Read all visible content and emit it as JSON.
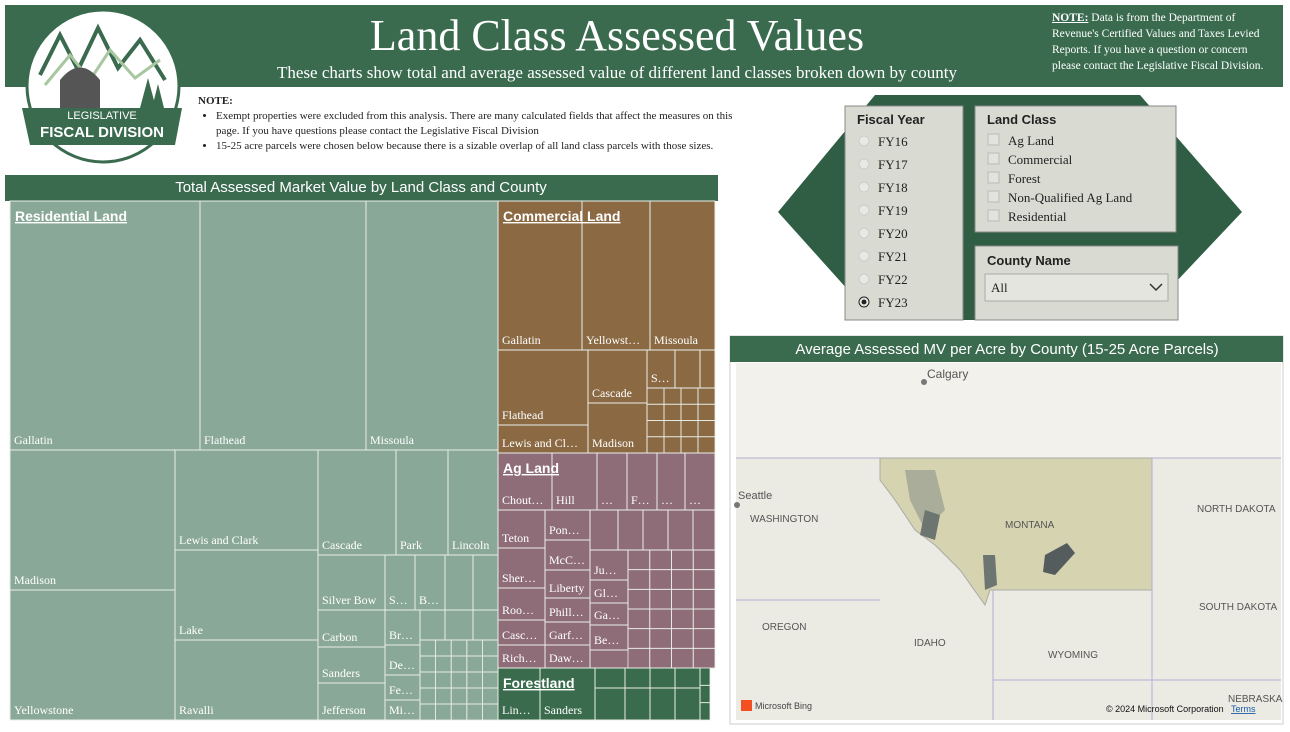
{
  "header": {
    "title": "Land Class Assessed Values",
    "subtitle": "These charts show total and average assessed value of different land classes broken down by county",
    "note_label": "NOTE:",
    "note_text": "Data is from the Department of Revenue's Certified Values and Taxes Levied Reports. If you have a question or concern please contact the Legislative Fiscal Division."
  },
  "logo": {
    "line1": "LEGISLATIVE",
    "line2": "FISCAL DIVISION"
  },
  "notes": {
    "label": "NOTE:",
    "items": [
      "Exempt properties were excluded from this analysis. There are many calculated fields that affect the measures on this page. If you have questions please contact the Legislative Fiscal Division",
      "15-25 acre parcels were chosen below because there is a sizable overlap of all land class parcels with those sizes."
    ]
  },
  "treemap": {
    "title": "Total Assessed Market Value by Land Class and County",
    "groups": [
      {
        "name": "Residential Land",
        "color": "#8aa898",
        "cells": [
          "Gallatin",
          "Flathead",
          "Missoula",
          "Madison",
          "Yellowstone",
          "Lewis and Clark",
          "Lake",
          "Ravalli",
          "Cascade",
          "Park",
          "Lincoln",
          "Silver Bow",
          "S…",
          "B…",
          "Carbon",
          "Sanders",
          "Jefferson",
          "Br…",
          "De…",
          "Fe…",
          "Mi…"
        ]
      },
      {
        "name": "Commercial Land",
        "color": "#8b6a43",
        "cells": [
          "Gallatin",
          "Yellowst…",
          "Missoula",
          "Flathead",
          "Lewis and Cl…",
          "Cascade",
          "Madison",
          "S…"
        ]
      },
      {
        "name": "Ag Land",
        "color": "#8f6d78",
        "cells": [
          "Chout…",
          "Hill",
          "…",
          "F…",
          "…",
          "…",
          "Teton",
          "Sher…",
          "Roo…",
          "Casc…",
          "Rich…",
          "Pon…",
          "McC…",
          "Liberty",
          "Phill…",
          "Garf…",
          "Daw…",
          "Ju…",
          "Gl…",
          "Ga…",
          "Be…"
        ]
      },
      {
        "name": "Forestland",
        "color": "#3b6b4d",
        "cells": [
          "Lin…",
          "Sanders"
        ]
      }
    ]
  },
  "slicers": {
    "fiscal_year": {
      "title": "Fiscal Year",
      "options": [
        "FY16",
        "FY17",
        "FY18",
        "FY19",
        "FY20",
        "FY21",
        "FY22",
        "FY23"
      ],
      "selected": "FY23"
    },
    "land_class": {
      "title": "Land Class",
      "options": [
        "Ag Land",
        "Commercial",
        "Forest",
        "Non-Qualified Ag Land",
        "Residential"
      ]
    },
    "county": {
      "title": "County Name",
      "value": "All"
    }
  },
  "map": {
    "title": "Average Assessed MV per Acre by County (15-25 Acre Parcels)",
    "labels": [
      "Calgary",
      "Seattle",
      "WASHINGTON",
      "MONTANA",
      "NORTH DAKOTA",
      "OREGON",
      "IDAHO",
      "SOUTH DAKOTA",
      "WYOMING",
      "NEBRASKA"
    ],
    "provider": "Microsoft Bing",
    "copyright": "© 2024 Microsoft Corporation",
    "terms": "Terms"
  }
}
